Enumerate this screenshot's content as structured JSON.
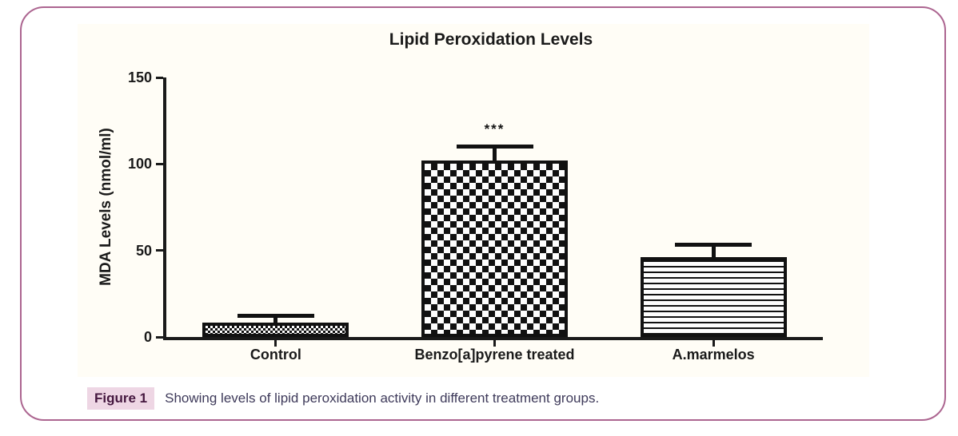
{
  "card": {
    "border_color": "#ac6590",
    "background": "#ffffff"
  },
  "graph": {
    "background": "#fffdf6",
    "ink_color": "#1a1a1a",
    "bar_fill_dark": "#111111"
  },
  "chart_data": {
    "type": "bar",
    "title": "Lipid Peroxidation Levels",
    "xlabel": "",
    "ylabel": "MDA Levels (nmol/ml)",
    "ylim": [
      0,
      150
    ],
    "yticks": [
      0,
      50,
      100,
      150
    ],
    "grid": false,
    "legend": "none",
    "categories": [
      "Control",
      "Benzo[a]pyrene treated",
      "A.marmelos"
    ],
    "values": [
      8.5,
      102,
      46
    ],
    "errors": [
      3.5,
      8,
      7
    ],
    "patterns": [
      "fine-checker",
      "checker",
      "hlines"
    ],
    "significance": [
      {
        "category": "Benzo[a]pyrene treated",
        "label": "***"
      }
    ]
  },
  "figure_caption": {
    "label": "Figure 1",
    "text": "Showing levels of lipid peroxidation activity in different treatment groups.",
    "label_bg": "#eed6e4",
    "label_color": "#45173f",
    "text_color": "#3e3a5a"
  }
}
